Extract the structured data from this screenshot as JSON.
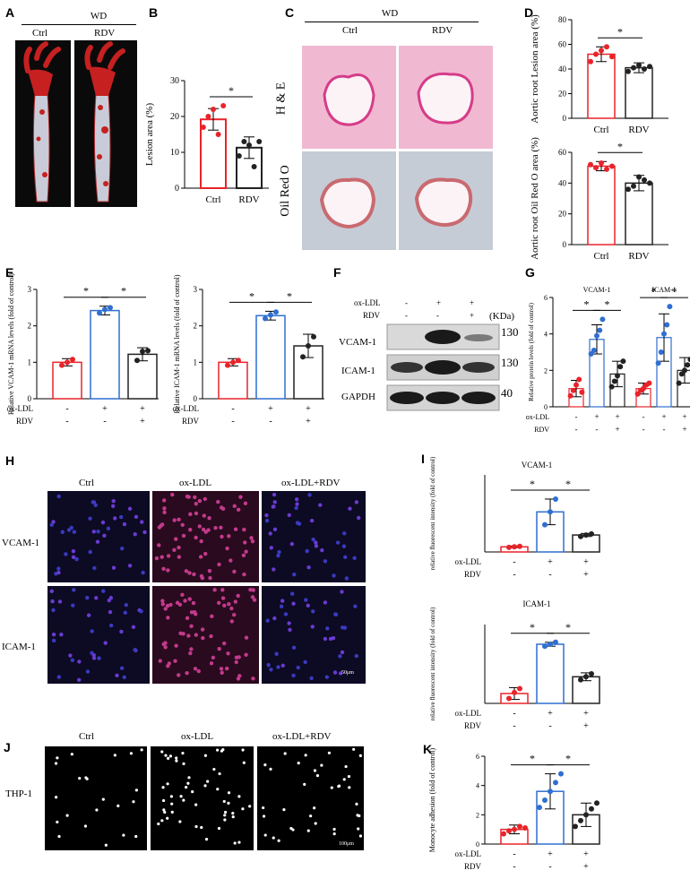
{
  "panels": {
    "A": {
      "letter": "A",
      "group": "WD",
      "cols": [
        "Ctrl",
        "RDV"
      ]
    },
    "B": {
      "letter": "B"
    },
    "C": {
      "letter": "C",
      "group": "WD",
      "cols": [
        "Ctrl",
        "RDV"
      ],
      "rows": [
        "H & E",
        "Oil Red O"
      ]
    },
    "D": {
      "letter": "D"
    },
    "E": {
      "letter": "E"
    },
    "F": {
      "letter": "F",
      "conditions": [
        {
          "label": "ox-LDL",
          "values": [
            "-",
            "+",
            "+"
          ]
        },
        {
          "label": "RDV",
          "values": [
            "-",
            "-",
            "+"
          ]
        }
      ],
      "kda_label": "(KDa)",
      "bands": [
        {
          "name": "VCAM-1",
          "kda": "130"
        },
        {
          "name": "ICAM-1",
          "kda": "130"
        },
        {
          "name": "GAPDH",
          "kda": "40"
        }
      ]
    },
    "G": {
      "letter": "G"
    },
    "H": {
      "letter": "H",
      "cols": [
        "Ctrl",
        "ox-LDL",
        "ox-LDL+RDV"
      ],
      "rows": [
        "VCAM-1",
        "ICAM-1"
      ],
      "scale": "50μm"
    },
    "I": {
      "letter": "I"
    },
    "J": {
      "letter": "J",
      "cols": [
        "Ctrl",
        "ox-LDL",
        "ox-LDL+RDV"
      ],
      "row": "THP-1",
      "scale": "100μm"
    },
    "K": {
      "letter": "K"
    }
  },
  "treat_rows": {
    "ox_ldl": {
      "label": "ox-LDL",
      "values": [
        "-",
        "+",
        "+"
      ]
    },
    "rdv": {
      "label": "RDV",
      "values": [
        "-",
        "-",
        "+"
      ]
    }
  },
  "colors": {
    "ctrl": "#e8242a",
    "oxldl": "#2f6fd0",
    "rdv": "#222222"
  },
  "chart_data": [
    {
      "id": "B",
      "type": "bar",
      "categories": [
        "Ctrl",
        "RDV"
      ],
      "values": [
        19.2,
        11.3
      ],
      "errors": [
        3.0,
        3.0
      ],
      "points": [
        [
          17,
          20,
          22,
          15,
          23
        ],
        [
          9,
          13,
          12,
          6,
          13
        ]
      ],
      "ylabel": "Lesion area (%)",
      "ylim": [
        0,
        30
      ],
      "yticks": [
        0,
        10,
        20,
        30
      ],
      "sig": [
        {
          "from": 0,
          "to": 1,
          "label": "*"
        }
      ]
    },
    {
      "id": "D1",
      "type": "bar",
      "categories": [
        "Ctrl",
        "RDV"
      ],
      "values": [
        52,
        41
      ],
      "errors": [
        6,
        4
      ],
      "points": [
        [
          46,
          52,
          55,
          58,
          50
        ],
        [
          38,
          41,
          43,
          40,
          42
        ]
      ],
      "ylabel": "Aortic root Lesion area (%)",
      "ylim": [
        0,
        80
      ],
      "yticks": [
        0,
        20,
        40,
        60,
        80
      ],
      "sig": [
        {
          "from": 0,
          "to": 1,
          "label": "*"
        }
      ]
    },
    {
      "id": "D2",
      "type": "bar",
      "categories": [
        "Ctrl",
        "RDV"
      ],
      "values": [
        51,
        40
      ],
      "errors": [
        3,
        5
      ],
      "points": [
        [
          52,
          50,
          53,
          49,
          51
        ],
        [
          36,
          38,
          44,
          42,
          40
        ]
      ],
      "ylabel": "Aortic root Oil Red O area (%)",
      "ylim": [
        0,
        60
      ],
      "yticks": [
        0,
        20,
        40,
        60
      ],
      "sig": [
        {
          "from": 0,
          "to": 1,
          "label": "*"
        }
      ]
    },
    {
      "id": "E1",
      "type": "bar",
      "categories": [
        "Ctrl",
        "ox-LDL",
        "ox-LDL+RDV"
      ],
      "values": [
        1.0,
        2.42,
        1.22
      ],
      "errors": [
        0.1,
        0.12,
        0.18
      ],
      "points": [
        [
          0.92,
          1.0,
          1.08
        ],
        [
          2.35,
          2.45,
          2.5
        ],
        [
          1.05,
          1.3,
          1.32
        ]
      ],
      "ylabel": "Relative VCAM-1 mRNA levels (fold of control)",
      "ylim": [
        0,
        3
      ],
      "yticks": [
        0,
        1,
        2,
        3
      ],
      "sig": [
        {
          "from": 0,
          "to": 1,
          "label": "*"
        },
        {
          "from": 1,
          "to": 2,
          "label": "*"
        }
      ]
    },
    {
      "id": "E2",
      "type": "bar",
      "categories": [
        "Ctrl",
        "ox-LDL",
        "ox-LDL+RDV"
      ],
      "values": [
        1.0,
        2.28,
        1.45
      ],
      "errors": [
        0.1,
        0.12,
        0.32
      ],
      "points": [
        [
          0.92,
          1.0,
          1.05
        ],
        [
          2.2,
          2.3,
          2.38
        ],
        [
          1.15,
          1.45,
          1.7
        ]
      ],
      "ylabel": "Relative ICAM-1 mRNA levels (fold of control)",
      "ylim": [
        0,
        3
      ],
      "yticks": [
        0,
        1,
        2,
        3
      ],
      "sig": [
        {
          "from": 0,
          "to": 1,
          "label": "*"
        },
        {
          "from": 1,
          "to": 2,
          "label": "*"
        }
      ]
    },
    {
      "id": "G",
      "type": "bar",
      "group_labels": [
        "VCAM-1",
        "ICAM-1"
      ],
      "categories": [
        "Ctrl",
        "ox-LDL",
        "ox-LDL+RDV",
        "Ctrl",
        "ox-LDL",
        "ox-LDL+RDV"
      ],
      "values": [
        1.0,
        3.7,
        1.8,
        1.0,
        3.8,
        2.0
      ],
      "errors": [
        0.45,
        0.8,
        0.7,
        0.3,
        1.3,
        0.7
      ],
      "points": [
        [
          0.6,
          0.9,
          1.2,
          1.5,
          0.8
        ],
        [
          2.9,
          3.1,
          3.9,
          4.2,
          4.8
        ],
        [
          1.1,
          1.4,
          1.7,
          2.2,
          2.5
        ],
        [
          0.7,
          0.9,
          1.0,
          1.2,
          1.3
        ],
        [
          2.4,
          3.0,
          4.0,
          4.5,
          5.5
        ],
        [
          1.3,
          1.8,
          2.0,
          2.3,
          2.6
        ]
      ],
      "ylabel": "Relative protein levels (fold of control)",
      "ylim": [
        0,
        6
      ],
      "yticks": [
        0,
        2,
        4,
        6
      ],
      "sig": [
        {
          "from": 0,
          "to": 1,
          "label": "*"
        },
        {
          "from": 1,
          "to": 2,
          "label": "*"
        },
        {
          "from": 3,
          "to": 4,
          "label": "*"
        },
        {
          "from": 4,
          "to": 5,
          "label": "*"
        }
      ]
    },
    {
      "id": "I1",
      "title": "VCAM-1",
      "type": "bar",
      "categories": [
        "Ctrl",
        "ox-LDL",
        "ox-LDL+RDV"
      ],
      "values": [
        1.0,
        7.8,
        3.3
      ],
      "errors": [
        0.15,
        2.5,
        0.3
      ],
      "points": [
        [
          0.9,
          1.0,
          1.1
        ],
        [
          5.3,
          7.8,
          10.3
        ],
        [
          3.0,
          3.3,
          3.5
        ]
      ],
      "ylabel": "relative fluorescent intensity (fold of control)",
      "ylim": [
        0,
        15
      ],
      "yticks": [],
      "sig": [
        {
          "from": 0,
          "to": 1,
          "label": "*"
        },
        {
          "from": 1,
          "to": 2,
          "label": "*"
        }
      ]
    },
    {
      "id": "I2",
      "title": "ICAM-1",
      "type": "bar",
      "categories": [
        "Ctrl",
        "ox-LDL",
        "ox-LDL+RDV"
      ],
      "values": [
        1.0,
        6.0,
        2.7
      ],
      "errors": [
        0.6,
        0.2,
        0.4
      ],
      "points": [
        [
          0.5,
          1.1,
          1.5
        ],
        [
          5.8,
          6.0,
          6.2
        ],
        [
          2.4,
          2.7,
          3.0
        ]
      ],
      "ylabel": "relative fluorescent intensity (fold of control)",
      "ylim": [
        0,
        8
      ],
      "yticks": [],
      "sig": [
        {
          "from": 0,
          "to": 1,
          "label": "*"
        },
        {
          "from": 1,
          "to": 2,
          "label": "*"
        }
      ]
    },
    {
      "id": "K",
      "type": "bar",
      "categories": [
        "Ctrl",
        "ox-LDL",
        "ox-LDL+RDV"
      ],
      "values": [
        1.0,
        3.6,
        2.0
      ],
      "errors": [
        0.3,
        1.2,
        0.8
      ],
      "points": [
        [
          0.7,
          0.9,
          1.0,
          1.2,
          1.1
        ],
        [
          2.5,
          3.0,
          3.6,
          4.2,
          4.8
        ],
        [
          1.2,
          1.6,
          2.0,
          2.4,
          2.8
        ]
      ],
      "ylabel": "Monocyte adhesion (fold of control)",
      "ylim": [
        0,
        6
      ],
      "yticks": [
        0,
        2,
        4,
        6
      ],
      "sig": [
        {
          "from": 0,
          "to": 1,
          "label": "*"
        },
        {
          "from": 1,
          "to": 2,
          "label": "*"
        }
      ]
    }
  ]
}
